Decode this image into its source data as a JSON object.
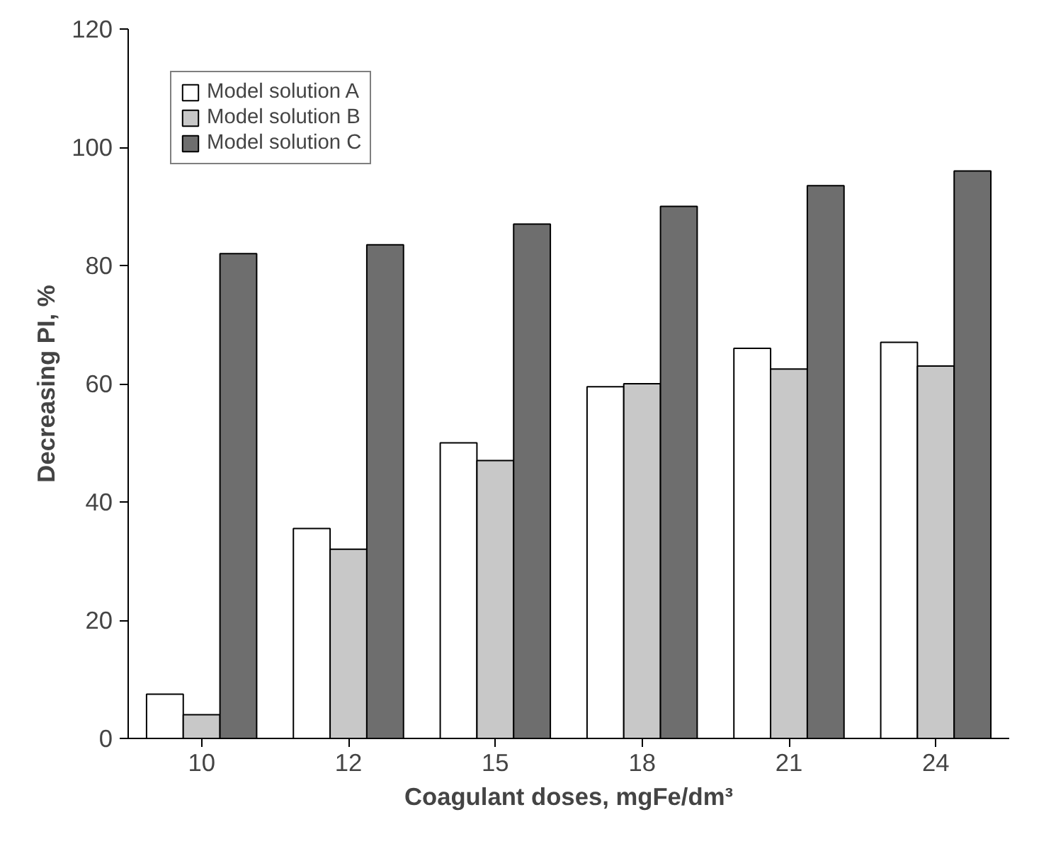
{
  "chart_data": {
    "type": "bar",
    "xlabel": "Coagulant doses, mgFe/dm³",
    "ylabel": "Decreasing PI, %",
    "categories": [
      "10",
      "12",
      "15",
      "18",
      "21",
      "24"
    ],
    "series": [
      {
        "name": "Model solution A",
        "color": "#ffffff",
        "values": [
          7.5,
          35.5,
          50,
          59.5,
          66,
          67
        ]
      },
      {
        "name": "Model solution B",
        "color": "#c8c8c8",
        "values": [
          4,
          32,
          47,
          60,
          62.5,
          63
        ]
      },
      {
        "name": "Model solution C",
        "color": "#6e6e6e",
        "values": [
          82,
          83.5,
          87,
          90,
          93.5,
          96
        ]
      }
    ],
    "ylim": [
      0,
      120
    ],
    "yticks": [
      0,
      20,
      40,
      60,
      80,
      100,
      120
    ],
    "grid": false,
    "legend": "top left"
  }
}
